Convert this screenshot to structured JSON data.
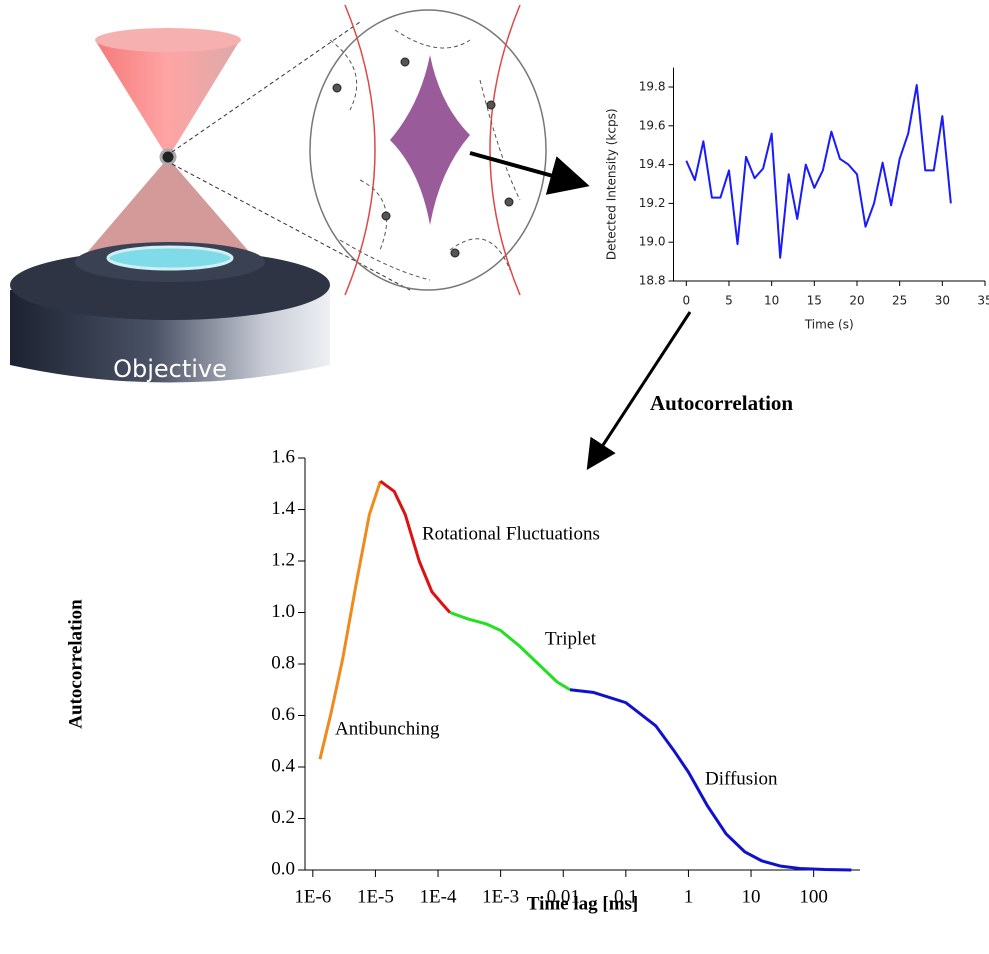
{
  "illustration": {
    "label": "Objective"
  },
  "arrow_label": "Autocorrelation",
  "chart_data": [
    {
      "type": "line",
      "y_label": "Detected Intensity (kcps)",
      "x_label": "Time (s)",
      "x": [
        0,
        1,
        2,
        3,
        4,
        5,
        6,
        7,
        8,
        9,
        10,
        11,
        12,
        13,
        14,
        15,
        16,
        17,
        18,
        19,
        20,
        21,
        22,
        23,
        24,
        25,
        26,
        27,
        28,
        29,
        30,
        31
      ],
      "values": [
        19.42,
        19.32,
        19.52,
        19.23,
        19.23,
        19.37,
        18.99,
        19.44,
        19.33,
        19.38,
        19.56,
        18.92,
        19.35,
        19.12,
        19.4,
        19.28,
        19.37,
        19.57,
        19.43,
        19.4,
        19.35,
        19.08,
        19.2,
        19.41,
        19.19,
        19.43,
        19.56,
        19.81,
        19.37,
        19.37,
        19.65,
        19.2
      ],
      "color": "#1a1aff",
      "xlim": [
        -1.5,
        35
      ],
      "ylim": [
        18.8,
        19.9
      ],
      "xticks": [
        0,
        5,
        10,
        15,
        20,
        25,
        30,
        35
      ],
      "yticks": [
        18.8,
        {
          "value": 19,
          "label": "19.0"
        },
        19.2,
        19.4,
        19.6,
        19.8
      ]
    },
    {
      "type": "line",
      "log_x": true,
      "y_label": "Autocorrelation",
      "x_label": "Time lag [ms]",
      "series": [
        {
          "name": "Antibunching",
          "color": "#f08a1c",
          "x": [
            1.3e-06,
            2e-06,
            3e-06,
            5e-06,
            8e-06,
            1.2e-05
          ],
          "values": [
            0.43,
            0.62,
            0.82,
            1.12,
            1.38,
            1.51
          ]
        },
        {
          "name": "Rotational Fluctuations",
          "color": "#e01010",
          "x": [
            1.2e-05,
            2e-05,
            3e-05,
            5e-05,
            8e-05,
            0.00012,
            0.000155
          ],
          "values": [
            1.51,
            1.47,
            1.38,
            1.2,
            1.08,
            1.03,
            1.0
          ]
        },
        {
          "name": "Triplet",
          "color": "#22e022",
          "x": [
            0.000155,
            0.0003,
            0.0006,
            0.001,
            0.002,
            0.004,
            0.008,
            0.0128
          ],
          "values": [
            1.0,
            0.975,
            0.955,
            0.93,
            0.87,
            0.8,
            0.73,
            0.7
          ]
        },
        {
          "name": "Diffusion",
          "color": "#1010d0",
          "x": [
            0.0128,
            0.03,
            0.1,
            0.3,
            0.6,
            1,
            2,
            4,
            8,
            15,
            30,
            60,
            150,
            400
          ],
          "values": [
            0.7,
            0.69,
            0.65,
            0.56,
            0.46,
            0.38,
            0.25,
            0.14,
            0.07,
            0.035,
            0.015,
            0.006,
            0.002,
            0
          ]
        }
      ],
      "xlim": [
        7.5e-07,
        550
      ],
      "ylim": [
        0,
        1.6
      ],
      "xticks": [
        {
          "value": 1e-06,
          "label": "1E-6"
        },
        {
          "value": 1e-05,
          "label": "1E-5"
        },
        {
          "value": 0.0001,
          "label": "1E-4"
        },
        {
          "value": 0.001,
          "label": "1E-3"
        },
        0.01,
        0.1,
        1,
        10,
        100
      ],
      "yticks": [
        {
          "value": 0,
          "label": "0.0"
        },
        0.2,
        0.4,
        0.6,
        0.8,
        {
          "value": 1,
          "label": "1.0"
        },
        1.2,
        1.4,
        1.6
      ]
    }
  ]
}
